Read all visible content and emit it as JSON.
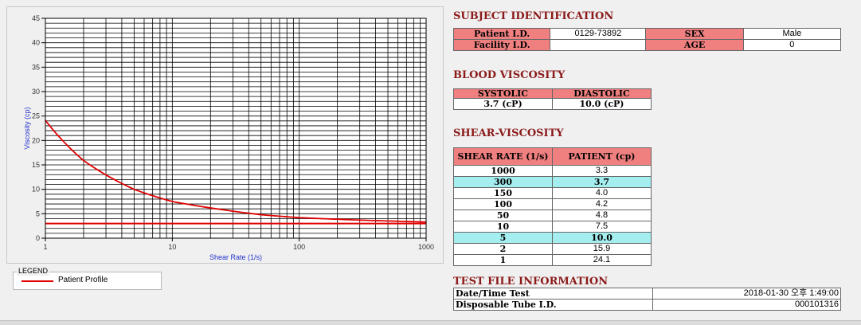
{
  "chart_data": {
    "type": "line",
    "xscale": "log",
    "xlim": [
      1,
      1000
    ],
    "ylim": [
      0,
      45
    ],
    "yticks": [
      0,
      5,
      10,
      15,
      20,
      25,
      30,
      35,
      40,
      45
    ],
    "xticks": [
      1,
      10,
      100,
      1000
    ],
    "xlabel": "Shear Rate (1/s)",
    "ylabel": "Viscosity (cp)",
    "grid": true,
    "series": [
      {
        "name": "Patient Profile",
        "color": "#e00000",
        "x": [
          1,
          2,
          5,
          10,
          50,
          100,
          150,
          300,
          1000
        ],
        "y": [
          24.1,
          15.9,
          10.0,
          7.5,
          4.8,
          4.2,
          4.0,
          3.7,
          3.3
        ]
      }
    ],
    "reference_lines": [
      {
        "y": 3.0,
        "color": "#e00000"
      }
    ]
  },
  "legend": {
    "title": "LEGEND",
    "entry": "Patient Profile"
  },
  "subject": {
    "title": "SUBJECT IDENTIFICATION",
    "patient_id_label": "Patient I.D.",
    "patient_id": "0129-73892",
    "sex_label": "SEX",
    "sex": "Male",
    "facility_label": "Facility I.D.",
    "facility_id": "",
    "age_label": "AGE",
    "age": "0"
  },
  "blood": {
    "title": "BLOOD VISCOSITY",
    "systolic_label": "SYSTOLIC",
    "diastolic_label": "DIASTOLIC",
    "systolic": "3.7 (cP)",
    "diastolic": "10.0 (cP)"
  },
  "shear": {
    "title": "SHEAR-VISCOSITY",
    "rate_header": "SHEAR RATE (1/s)",
    "patient_header": "PATIENT (cp)",
    "rows": [
      {
        "rate": "1000",
        "value": "3.3",
        "highlight": false
      },
      {
        "rate": "300",
        "value": "3.7",
        "highlight": true
      },
      {
        "rate": "150",
        "value": "4.0",
        "highlight": false
      },
      {
        "rate": "100",
        "value": "4.2",
        "highlight": false
      },
      {
        "rate": "50",
        "value": "4.8",
        "highlight": false
      },
      {
        "rate": "10",
        "value": "7.5",
        "highlight": false
      },
      {
        "rate": "5",
        "value": "10.0",
        "highlight": true
      },
      {
        "rate": "2",
        "value": "15.9",
        "highlight": false
      },
      {
        "rate": "1",
        "value": "24.1",
        "highlight": false
      }
    ]
  },
  "file": {
    "title": "TEST FILE INFORMATION",
    "datetime_label": "Date/Time Test",
    "datetime": "2018-01-30   오후 1:49:00",
    "tube_label": "Disposable Tube I.D.",
    "tube_id": "000101316"
  }
}
